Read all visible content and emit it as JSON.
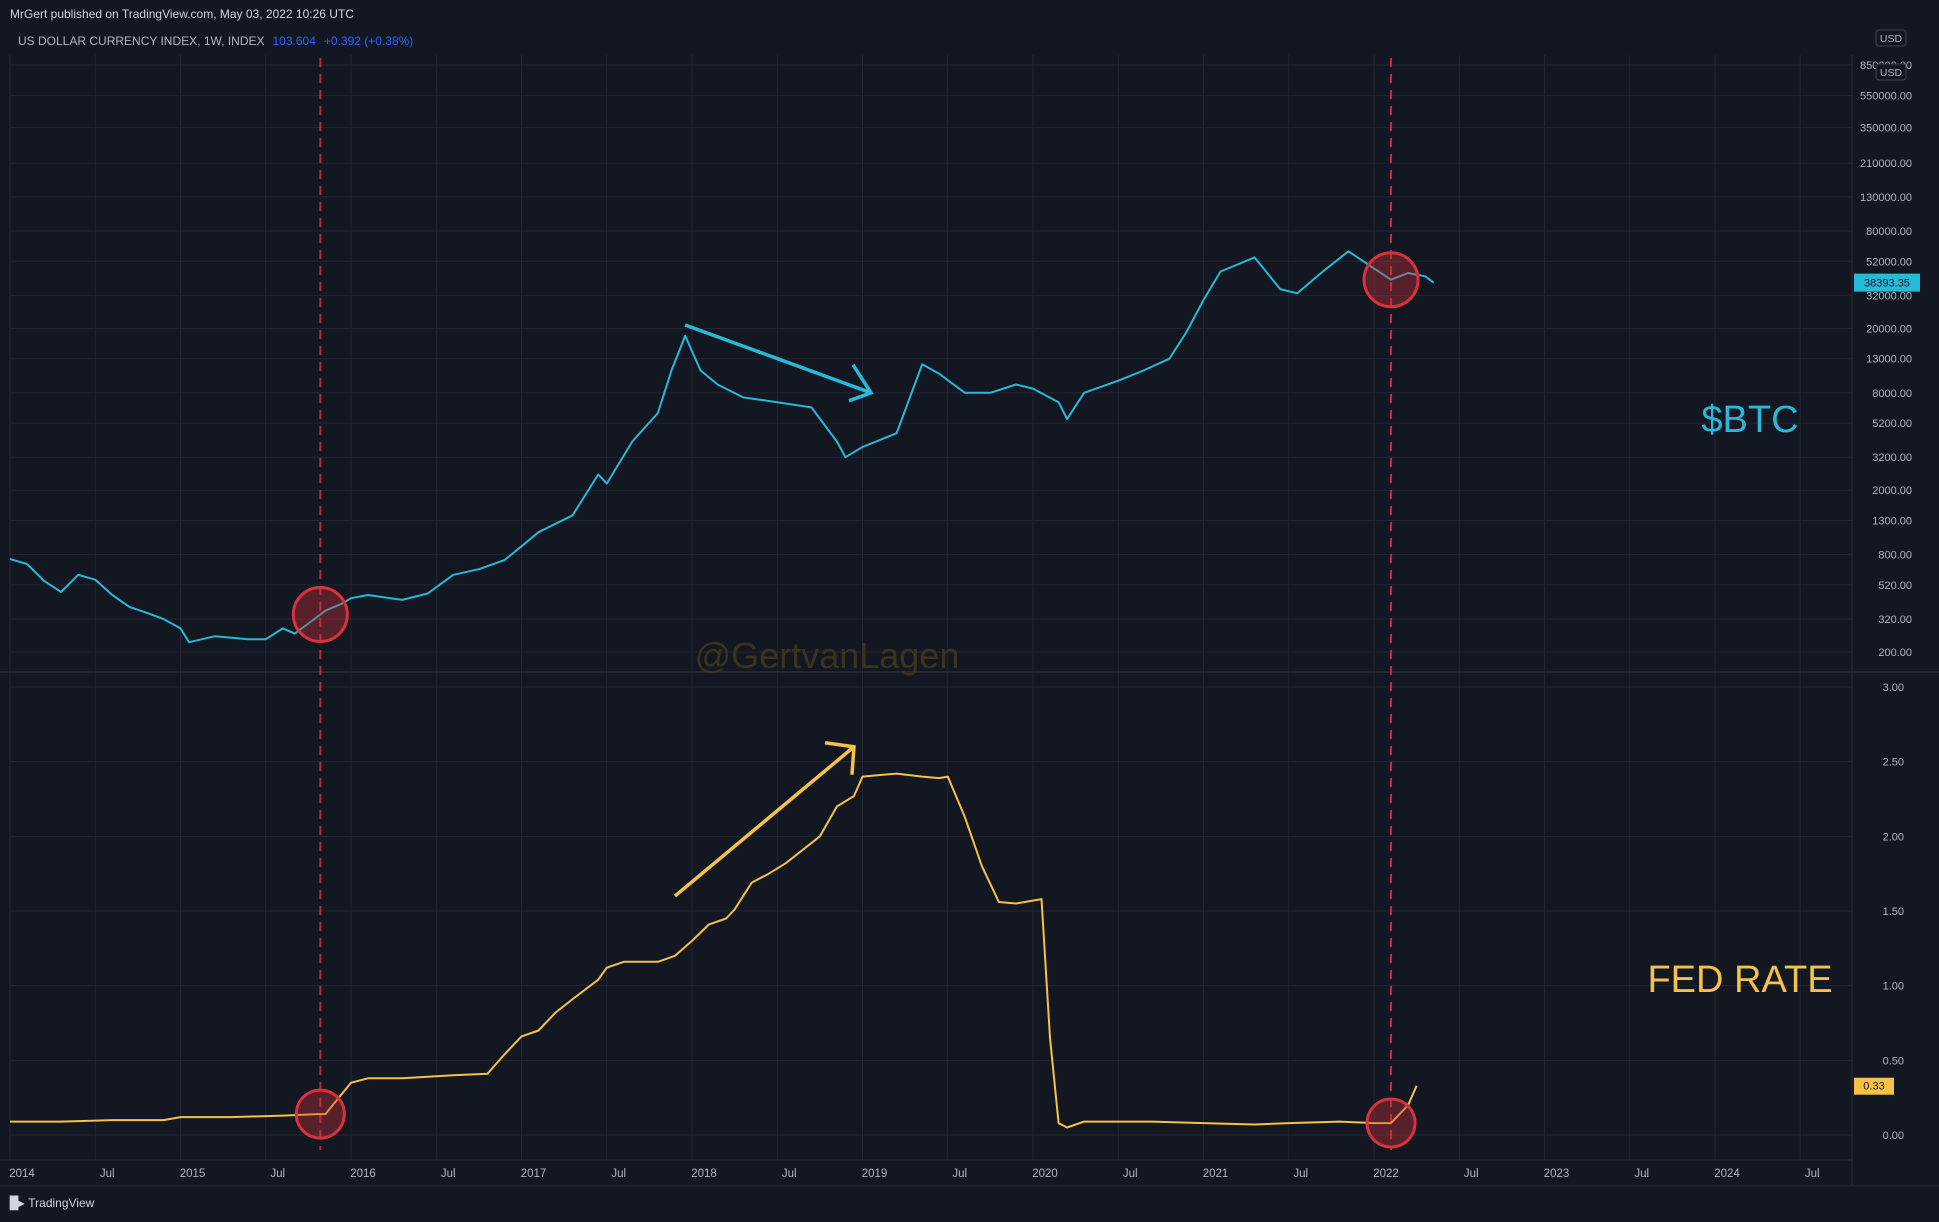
{
  "header": {
    "published": "MrGert published on TradingView.com, May 03, 2022 10:26 UTC",
    "symbol": "US DOLLAR CURRENCY INDEX, 1W, INDEX",
    "value": "103.604",
    "change": "+0.392 (+0.38%)"
  },
  "footer": {
    "brand": "TradingView"
  },
  "currency_badge": "USD",
  "watermark": "@GertvanLagen",
  "colors": {
    "btc": "#27b9d6",
    "fed": "#f5c146",
    "marker": "#d9323c",
    "grid": "#232733",
    "bg": "#131722"
  },
  "chart_data": [
    {
      "type": "line",
      "name": "BTC",
      "label": "$BTC",
      "scale": "log",
      "last_value_label": "38393.35",
      "yticks": [
        "850000.00",
        "550000.00",
        "350000.00",
        "210000.00",
        "130000.00",
        "80000.00",
        "52000.00",
        "32000.00",
        "20000.00",
        "13000.00",
        "8000.00",
        "5200.00",
        "3200.00",
        "2000.00",
        "1300.00",
        "800.00",
        "520.00",
        "320.00",
        "200.00"
      ],
      "x": [
        2014.0,
        2014.1,
        2014.2,
        2014.3,
        2014.4,
        2014.5,
        2014.6,
        2014.7,
        2014.8,
        2014.9,
        2015.0,
        2015.05,
        2015.2,
        2015.4,
        2015.5,
        2015.6,
        2015.67,
        2015.75,
        2015.85,
        2015.95,
        2016.0,
        2016.1,
        2016.3,
        2016.45,
        2016.6,
        2016.75,
        2016.9,
        2017.0,
        2017.1,
        2017.3,
        2017.45,
        2017.5,
        2017.65,
        2017.8,
        2017.88,
        2017.96,
        2018.05,
        2018.15,
        2018.3,
        2018.5,
        2018.7,
        2018.85,
        2018.9,
        2019.0,
        2019.2,
        2019.35,
        2019.45,
        2019.6,
        2019.75,
        2019.9,
        2020.0,
        2020.15,
        2020.2,
        2020.3,
        2020.5,
        2020.65,
        2020.8,
        2020.9,
        2021.0,
        2021.1,
        2021.3,
        2021.45,
        2021.55,
        2021.7,
        2021.85,
        2022.0,
        2022.1,
        2022.2,
        2022.3,
        2022.35
      ],
      "y": [
        750,
        700,
        550,
        470,
        600,
        560,
        450,
        380,
        350,
        320,
        280,
        230,
        250,
        240,
        240,
        280,
        260,
        300,
        360,
        400,
        430,
        450,
        420,
        460,
        600,
        650,
        740,
        900,
        1100,
        1400,
        2500,
        2200,
        4000,
        6000,
        11000,
        18000,
        11000,
        9000,
        7500,
        7000,
        6500,
        4000,
        3200,
        3700,
        4500,
        12000,
        10500,
        8000,
        8000,
        9000,
        8500,
        7000,
        5500,
        8000,
        9500,
        11000,
        13000,
        19000,
        30000,
        45000,
        55000,
        35000,
        33000,
        45000,
        60000,
        47000,
        40000,
        44000,
        42000,
        38393
      ],
      "markers_x": [
        2015.82,
        2022.1
      ]
    },
    {
      "type": "line",
      "name": "FED RATE",
      "label": "FED RATE",
      "last_value_label": "0.33",
      "yticks": [
        "3.00",
        "2.50",
        "2.00",
        "1.50",
        "1.00",
        "0.50",
        "0.00"
      ],
      "x": [
        2014.0,
        2014.3,
        2014.6,
        2014.9,
        2015.0,
        2015.3,
        2015.6,
        2015.8,
        2015.85,
        2016.0,
        2016.1,
        2016.3,
        2016.6,
        2016.8,
        2016.9,
        2017.0,
        2017.1,
        2017.2,
        2017.3,
        2017.45,
        2017.5,
        2017.6,
        2017.8,
        2017.9,
        2018.0,
        2018.1,
        2018.2,
        2018.25,
        2018.35,
        2018.45,
        2018.55,
        2018.65,
        2018.75,
        2018.85,
        2018.95,
        2019.0,
        2019.2,
        2019.35,
        2019.45,
        2019.5,
        2019.6,
        2019.7,
        2019.8,
        2019.9,
        2020.05,
        2020.1,
        2020.15,
        2020.2,
        2020.3,
        2020.5,
        2020.7,
        2021.0,
        2021.3,
        2021.5,
        2021.8,
        2022.0,
        2022.1,
        2022.2,
        2022.25
      ],
      "y": [
        0.09,
        0.09,
        0.1,
        0.1,
        0.12,
        0.12,
        0.13,
        0.14,
        0.14,
        0.35,
        0.38,
        0.38,
        0.4,
        0.41,
        0.54,
        0.66,
        0.7,
        0.82,
        0.91,
        1.04,
        1.12,
        1.16,
        1.16,
        1.2,
        1.3,
        1.41,
        1.45,
        1.51,
        1.69,
        1.75,
        1.82,
        1.91,
        2.0,
        2.2,
        2.27,
        2.4,
        2.42,
        2.4,
        2.39,
        2.4,
        2.13,
        1.8,
        1.56,
        1.55,
        1.58,
        0.65,
        0.08,
        0.05,
        0.09,
        0.09,
        0.09,
        0.08,
        0.07,
        0.08,
        0.09,
        0.08,
        0.08,
        0.2,
        0.33
      ],
      "markers_x": [
        2015.82,
        2022.1
      ]
    }
  ],
  "x_axis": {
    "ticks": [
      {
        "label": "2014",
        "t": 2014.0
      },
      {
        "label": "Jul",
        "t": 2014.5
      },
      {
        "label": "2015",
        "t": 2015.0
      },
      {
        "label": "Jul",
        "t": 2015.5
      },
      {
        "label": "2016",
        "t": 2016.0
      },
      {
        "label": "Jul",
        "t": 2016.5
      },
      {
        "label": "2017",
        "t": 2017.0
      },
      {
        "label": "Jul",
        "t": 2017.5
      },
      {
        "label": "2018",
        "t": 2018.0
      },
      {
        "label": "Jul",
        "t": 2018.5
      },
      {
        "label": "2019",
        "t": 2019.0
      },
      {
        "label": "Jul",
        "t": 2019.5
      },
      {
        "label": "2020",
        "t": 2020.0
      },
      {
        "label": "Jul",
        "t": 2020.5
      },
      {
        "label": "2021",
        "t": 2021.0
      },
      {
        "label": "Jul",
        "t": 2021.5
      },
      {
        "label": "2022",
        "t": 2022.0
      },
      {
        "label": "Jul",
        "t": 2022.5
      },
      {
        "label": "2023",
        "t": 2023.0
      },
      {
        "label": "Jul",
        "t": 2023.5
      },
      {
        "label": "2024",
        "t": 2024.0
      },
      {
        "label": "Jul",
        "t": 2024.5
      }
    ]
  }
}
